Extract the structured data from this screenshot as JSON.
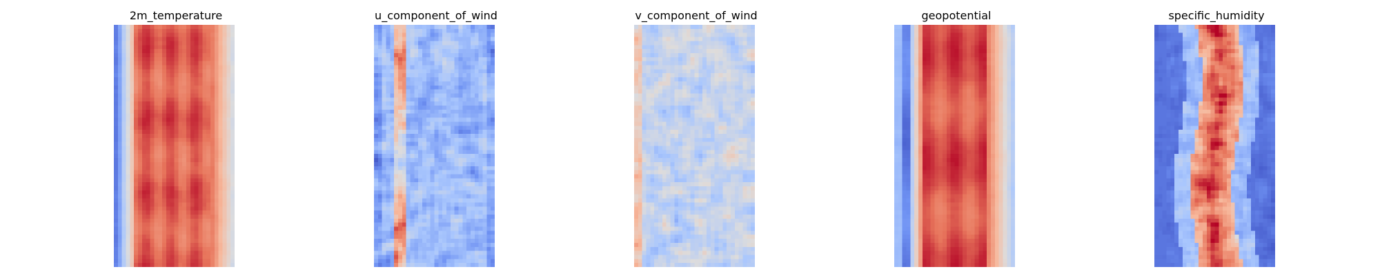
{
  "figure": {
    "background": "#ffffff",
    "colormap": "coolwarm",
    "colormap_stops": [
      "#3b4cc0",
      "#6f92f3",
      "#aac7fd",
      "#dddcdc",
      "#f7b89c",
      "#e7745b",
      "#b40426"
    ]
  },
  "chart_data": [
    {
      "type": "heatmap",
      "title": "2m_temperature",
      "rows": 60,
      "cols": 30,
      "axes_visible": false,
      "pattern": "cold strip along left edge, warm red band across center/right, lighter orange near right edge"
    },
    {
      "type": "heatmap",
      "title": "u_component_of_wind",
      "rows": 60,
      "cols": 30,
      "axes_visible": false,
      "pattern": "mostly light blue with scattered red streaks near left-center and patchy noise"
    },
    {
      "type": "heatmap",
      "title": "v_component_of_wind",
      "rows": 60,
      "cols": 30,
      "axes_visible": false,
      "pattern": "near-neutral gray/light blue noise with small red and blue patches"
    },
    {
      "type": "heatmap",
      "title": "geopotential",
      "rows": 60,
      "cols": 30,
      "axes_visible": false,
      "pattern": "blue strip at left edge, deep red center band, pale pink toward right"
    },
    {
      "type": "heatmap",
      "title": "specific_humidity",
      "rows": 60,
      "cols": 30,
      "axes_visible": false,
      "pattern": "dark blue edges, noisy red/orange vertical plume through center"
    }
  ]
}
